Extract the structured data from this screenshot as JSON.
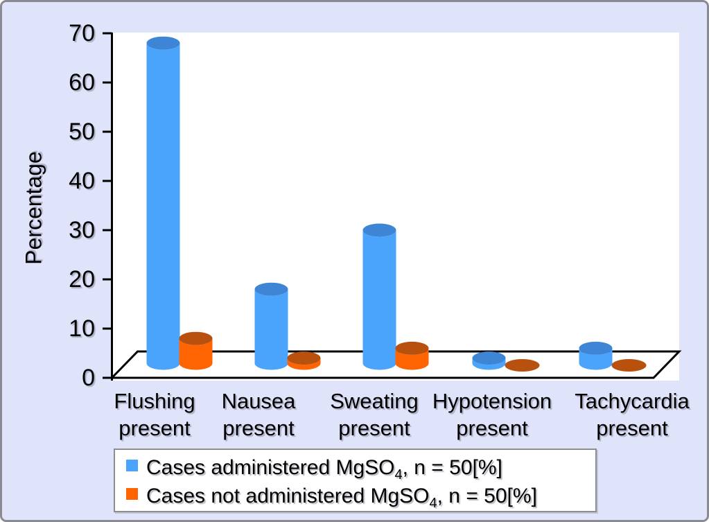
{
  "chart_data": {
    "type": "bar",
    "subtype": "3d-cylinder-clustered",
    "title": "",
    "xlabel": "",
    "ylabel": "Percentage",
    "ylim": [
      0,
      70
    ],
    "yticks": [
      0,
      10,
      20,
      30,
      40,
      50,
      60,
      70
    ],
    "grid": false,
    "legend_position": "bottom",
    "background_color": "#E0E4FB",
    "plot_background_color": "#FFFFFF",
    "categories": [
      {
        "label": "Flushing present",
        "line1": "Flushing",
        "line2": "present"
      },
      {
        "label": "Nausea present",
        "line1": "Nausea",
        "line2": "present"
      },
      {
        "label": "Sweating present",
        "line1": "Sweating",
        "line2": "present"
      },
      {
        "label": "Hypotension present",
        "line1": "Hypotension",
        "line2": "present"
      },
      {
        "label": "Tachycardia present",
        "line1": "Tachycardia",
        "line2": "present"
      }
    ],
    "series": [
      {
        "name": "Cases administered MgSO4, n = 50[%]",
        "legend": {
          "pre": "Cases administered MgSO",
          "sub": "4",
          "post": ", n = 50[%]"
        },
        "color": "#4AA4FB",
        "top_color": "#3E85D5",
        "values": [
          68,
          18,
          30,
          4,
          6
        ]
      },
      {
        "name": "Cases not administered MgSO4, n = 50[%]",
        "legend": {
          "pre": "Cases not administered MgSO",
          "sub": "4",
          "post": ", n = 50[%]"
        },
        "color": "#FE6502",
        "top_color": "#B8500E",
        "values": [
          8,
          4,
          6,
          2,
          2
        ]
      }
    ]
  }
}
